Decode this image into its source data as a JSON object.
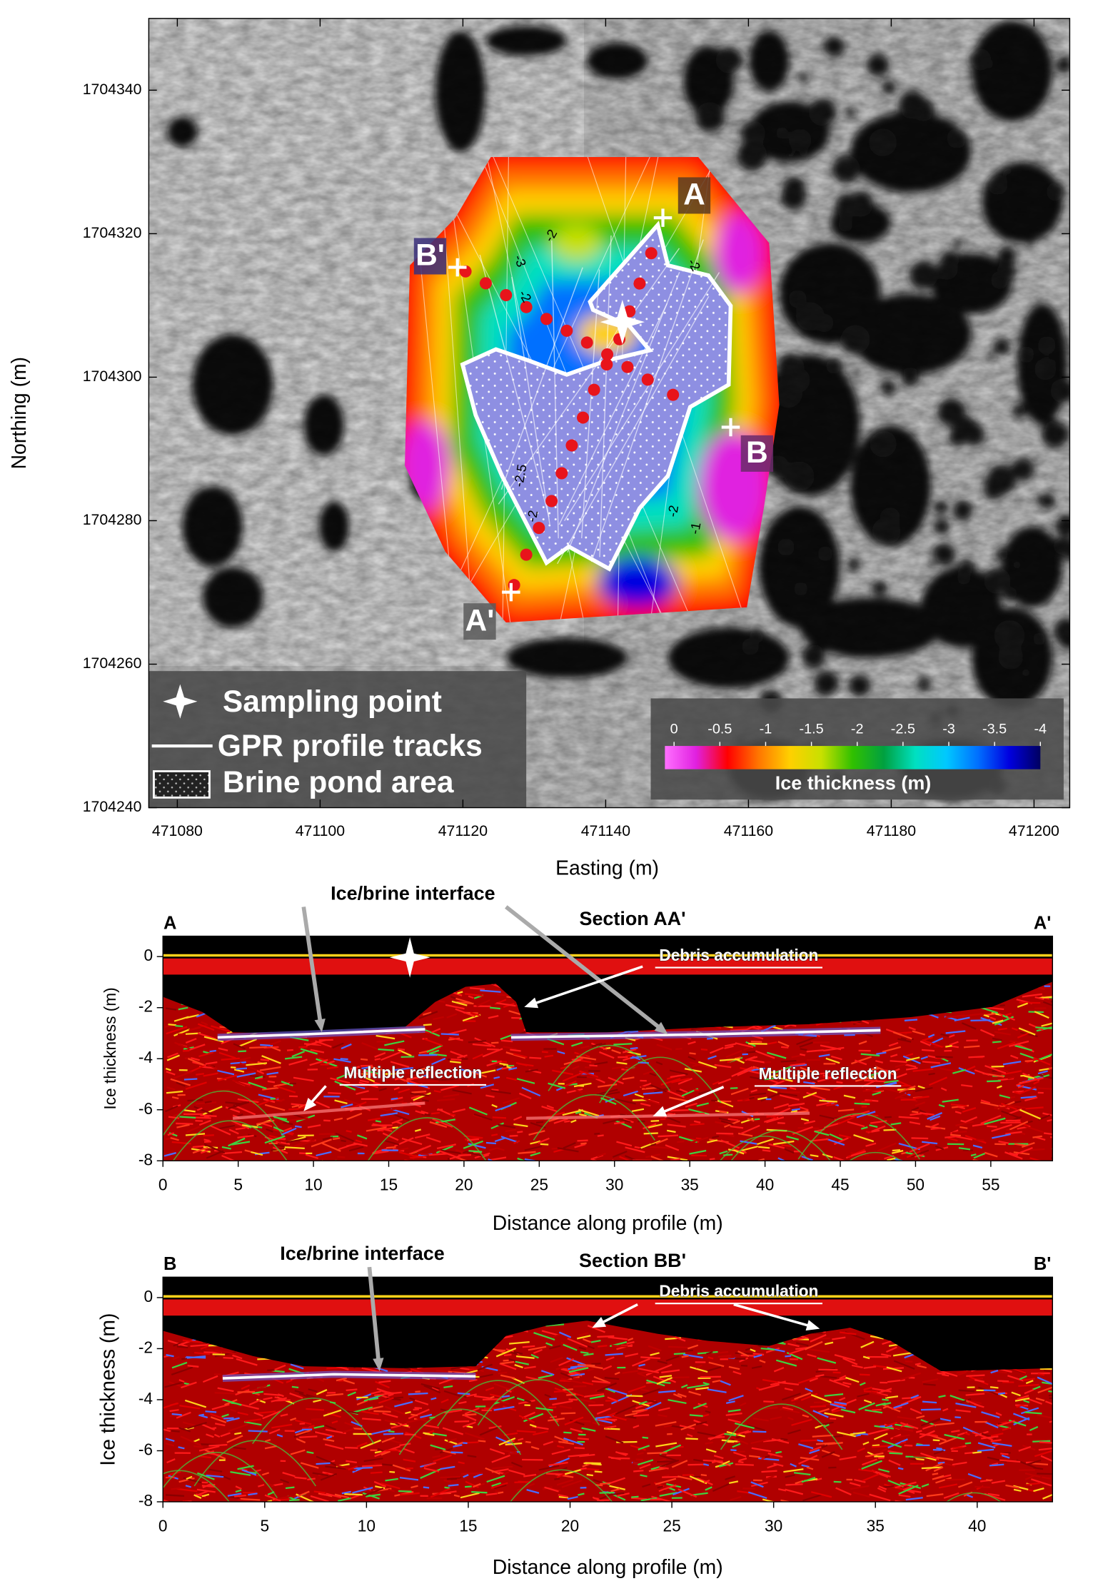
{
  "chart_data": [
    {
      "type": "map",
      "xlabel": "Easting (m)",
      "ylabel": "Northing (m)",
      "xlim": [
        471076,
        471205
      ],
      "ylim": [
        1704240,
        1704350
      ],
      "xticks": [
        471080,
        471100,
        471120,
        471140,
        471160,
        471180,
        471200
      ],
      "yticks": [
        1704240,
        1704260,
        1704280,
        1704300,
        1704320,
        1704340
      ],
      "point_labels": [
        "A",
        "A'",
        "B",
        "B'"
      ],
      "contour_labels": [
        -2,
        -3,
        -2,
        -2,
        -2.5,
        -2,
        -2,
        -1
      ],
      "legend": [
        "Sampling point",
        "GPR profile tracks",
        "Brine pond area"
      ],
      "colorbar": {
        "label": "Ice thickness (m)",
        "lim": [
          0.1,
          -4
        ],
        "ticks": [
          0,
          -0.5,
          -1,
          -1.5,
          -2,
          -2.5,
          -3,
          -3.5,
          -4
        ],
        "colors": [
          "#ff70ff",
          "#e020e0",
          "#ff0000",
          "#ff7700",
          "#ffd000",
          "#c8e000",
          "#30c000",
          "#00a040",
          "#00e0c0",
          "#00c8ff",
          "#0070ff",
          "#0000e0",
          "#000060"
        ]
      }
    },
    {
      "type": "radargram",
      "title": "Section AA'",
      "xlabel": "Distance along profile (m)",
      "ylabel": "Ice thickness (m)",
      "xlim": [
        0,
        59.1
      ],
      "ylim": [
        -8,
        0.8
      ],
      "xticks": [
        0,
        5,
        10,
        15,
        20,
        25,
        30,
        35,
        40,
        45,
        50,
        55
      ],
      "yticks": [
        -8,
        -6,
        -4,
        -2,
        0
      ],
      "end_labels": [
        "A",
        "A'"
      ],
      "annotations": [
        "Ice/brine interface",
        "Debris accumulation",
        "Multiple reflection",
        "Multiple reflection"
      ]
    },
    {
      "type": "radargram",
      "title": "Section BB'",
      "xlabel": "Distance along profile (m)",
      "ylabel": "Ice thickness (m)",
      "xlim": [
        0,
        43.7
      ],
      "ylim": [
        -8,
        0.8
      ],
      "xticks": [
        0,
        5,
        10,
        15,
        20,
        25,
        30,
        35,
        40
      ],
      "yticks": [
        -8,
        -6,
        -4,
        -2,
        0
      ],
      "end_labels": [
        "B",
        "B'"
      ],
      "annotations": [
        "Ice/brine interface",
        "Debris accumulation"
      ]
    }
  ]
}
